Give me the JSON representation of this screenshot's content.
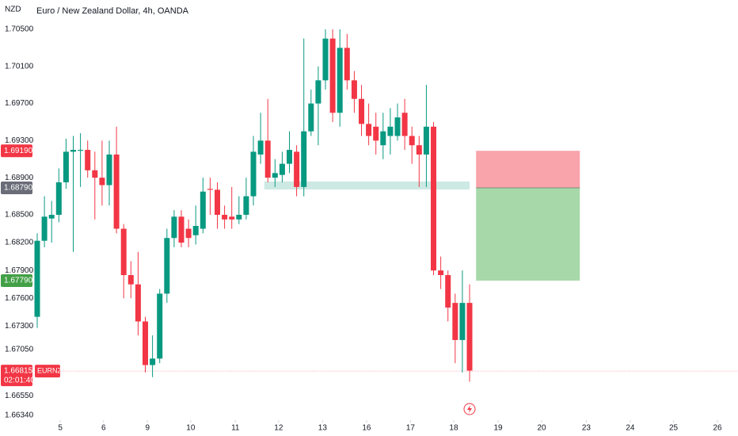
{
  "chart_data": {
    "type": "candlestick",
    "title": "Euro / New Zealand Dollar, 4h, OANDA",
    "currency": "NZD",
    "x": [
      0,
      1,
      2,
      3,
      4,
      5,
      6,
      7,
      8,
      9,
      10,
      11,
      12,
      13,
      14,
      15,
      16,
      17,
      18,
      19,
      20,
      21,
      22,
      23,
      24,
      25,
      26,
      27,
      28,
      29,
      30,
      31,
      32,
      33,
      34,
      35,
      36,
      37,
      38,
      39,
      40,
      41,
      42,
      43,
      44,
      45,
      46,
      47,
      48,
      49,
      50,
      51,
      52,
      53,
      54,
      55,
      56,
      57,
      58,
      59,
      60
    ],
    "open": [
      1.674,
      1.6822,
      1.6846,
      1.685,
      1.6885,
      1.6918,
      1.6919,
      1.692,
      1.6898,
      1.689,
      1.6882,
      1.6915,
      1.6835,
      1.6785,
      1.6775,
      1.6735,
      1.6688,
      1.6695,
      1.6765,
      1.6825,
      1.6848,
      1.6835,
      1.6828,
      1.6835,
      1.6878,
      1.6877,
      1.685,
      1.6848,
      1.6845,
      1.685,
      1.687,
      1.6915,
      1.693,
      1.689,
      1.6893,
      1.6905,
      1.6918,
      1.688,
      1.694,
      1.697,
      1.6995,
      1.704,
      1.696,
      1.703,
      1.6995,
      1.6975,
      1.6948,
      1.6945,
      1.6925,
      1.6935,
      1.6935,
      1.696,
      1.6935,
      1.6925,
      1.6915,
      1.6945,
      1.679,
      1.6785,
      1.6755,
      1.6715,
      1.6755
    ],
    "high": [
      1.683,
      1.687,
      1.6865,
      1.69,
      1.6932,
      1.6935,
      1.6938,
      1.693,
      1.6918,
      1.693,
      1.693,
      1.6945,
      1.684,
      1.68,
      1.681,
      1.674,
      1.672,
      1.677,
      1.6835,
      1.6855,
      1.6855,
      1.6845,
      1.686,
      1.689,
      1.689,
      1.6885,
      1.686,
      1.688,
      1.687,
      1.689,
      1.6935,
      1.696,
      1.6975,
      1.691,
      1.6918,
      1.694,
      1.6925,
      1.704,
      1.6985,
      1.701,
      1.705,
      1.705,
      1.705,
      1.7045,
      1.7005,
      1.699,
      1.697,
      1.696,
      1.696,
      1.6965,
      1.697,
      1.6975,
      1.6945,
      1.6935,
      1.699,
      1.695,
      1.6805,
      1.679,
      1.6765,
      1.679,
      1.6775
    ],
    "low": [
      1.6728,
      1.6815,
      1.682,
      1.6842,
      1.6878,
      1.681,
      1.688,
      1.689,
      1.6845,
      1.686,
      1.686,
      1.683,
      1.676,
      1.676,
      1.672,
      1.668,
      1.6675,
      1.669,
      1.6755,
      1.6815,
      1.6815,
      1.6815,
      1.6818,
      1.683,
      1.685,
      1.6835,
      1.6835,
      1.6835,
      1.684,
      1.6845,
      1.686,
      1.6905,
      1.6885,
      1.688,
      1.6885,
      1.6895,
      1.687,
      1.687,
      1.6935,
      1.6925,
      1.6985,
      1.695,
      1.6945,
      1.6985,
      1.696,
      1.6935,
      1.6925,
      1.6915,
      1.691,
      1.6915,
      1.693,
      1.692,
      1.6905,
      1.688,
      1.688,
      1.6785,
      1.677,
      1.6735,
      1.669,
      1.668,
      1.667
    ],
    "close": [
      1.6822,
      1.6848,
      1.685,
      1.6885,
      1.6918,
      1.692,
      1.692,
      1.6898,
      1.689,
      1.6882,
      1.6915,
      1.6835,
      1.6785,
      1.6775,
      1.6735,
      1.6688,
      1.6695,
      1.6765,
      1.6825,
      1.6848,
      1.682,
      1.6825,
      1.6838,
      1.6875,
      1.6877,
      1.685,
      1.6845,
      1.6845,
      1.685,
      1.687,
      1.6918,
      1.693,
      1.689,
      1.6895,
      1.6905,
      1.692,
      1.688,
      1.694,
      1.697,
      1.6995,
      1.704,
      1.696,
      1.703,
      1.6995,
      1.6975,
      1.6948,
      1.6935,
      1.693,
      1.694,
      1.6945,
      1.6955,
      1.6935,
      1.6925,
      1.6915,
      1.6945,
      1.679,
      1.6785,
      1.675,
      1.6715,
      1.6755,
      1.6682
    ],
    "up_color": "#089981",
    "down_color": "#f23645",
    "xlim": [
      -0.55,
      97.25
    ],
    "ylim": [
      1.66286,
      1.70816
    ],
    "yticks": [
      {
        "value": 1.705,
        "label": "1.70500"
      },
      {
        "value": 1.701,
        "label": "1.70100"
      },
      {
        "value": 1.697,
        "label": "1.69700"
      },
      {
        "value": 1.693,
        "label": "1.69300"
      },
      {
        "value": 1.689,
        "label": "1.68900"
      },
      {
        "value": 1.685,
        "label": "1.68500"
      },
      {
        "value": 1.682,
        "label": "1.68200"
      },
      {
        "value": 1.679,
        "label": "1.67900"
      },
      {
        "value": 1.676,
        "label": "1.67600"
      },
      {
        "value": 1.673,
        "label": "1.67300"
      },
      {
        "value": 1.6705,
        "label": "1.67050"
      },
      {
        "value": 1.6655,
        "label": "1.66550"
      },
      {
        "value": 1.6634,
        "label": "1.66340"
      }
    ],
    "xticks": [
      {
        "value": 3.2,
        "label": "5"
      },
      {
        "value": 9.2,
        "label": "6"
      },
      {
        "value": 15.3,
        "label": "9"
      },
      {
        "value": 21.3,
        "label": "10"
      },
      {
        "value": 27.5,
        "label": "11"
      },
      {
        "value": 33.5,
        "label": "12"
      },
      {
        "value": 39.6,
        "label": "13"
      },
      {
        "value": 45.7,
        "label": "16"
      },
      {
        "value": 51.8,
        "label": "17"
      },
      {
        "value": 57.8,
        "label": "18"
      },
      {
        "value": 63.96,
        "label": "19"
      },
      {
        "value": 70,
        "label": "20"
      },
      {
        "value": 76.2,
        "label": "23"
      },
      {
        "value": 82.3,
        "label": "24"
      },
      {
        "value": 88.3,
        "label": "25"
      },
      {
        "value": 94.4,
        "label": "26"
      }
    ],
    "zone": {
      "x": [
        31.5,
        60
      ],
      "y": [
        1.68773,
        1.68859
      ],
      "color": "#cde9e3"
    },
    "position": {
      "x": [
        60.9,
        75.3
      ],
      "stop": 1.6919,
      "entry": 1.6879,
      "target": 1.6779,
      "stop_color": "#f9a3ab",
      "target_color": "#a7d8a9"
    },
    "price_labels": [
      {
        "value": 1.6919,
        "label": "1.69190",
        "color": "#f23645"
      },
      {
        "value": 1.6879,
        "label": "1.68790",
        "color": "#6a6d78"
      },
      {
        "value": 1.6779,
        "label": "1.67790",
        "color": "#43a047"
      }
    ],
    "last_price": {
      "value": 1.66815,
      "label": "1.66815",
      "symbol": "EURNZD",
      "countdown": "02:01:40",
      "color": "#f23645"
    }
  }
}
